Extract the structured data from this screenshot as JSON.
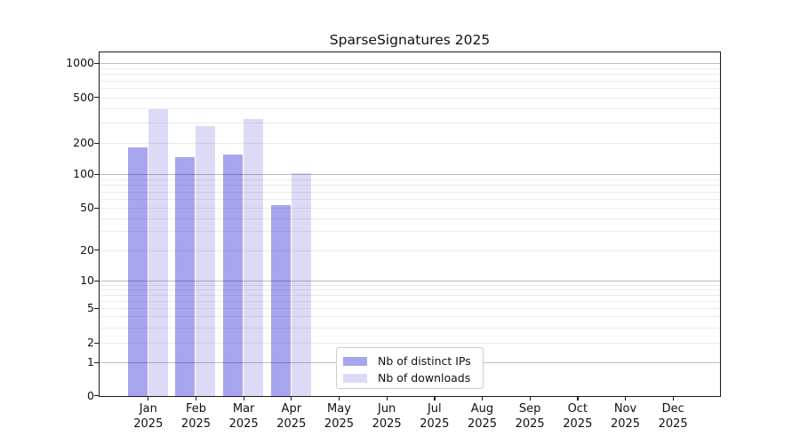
{
  "title": "SparseSignatures 2025",
  "colors": {
    "ips_fill": "rgba(0,0,205,0.35)",
    "downloads_fill": "rgba(0,0,205,0.14)",
    "grid_major": "#bdbdbd",
    "grid_minor": "#ececec",
    "spine": "#1a1a1a",
    "legend_border": "#cccccc",
    "legend_bg": "#ffffff",
    "text": "#111111"
  },
  "legend": {
    "items": [
      {
        "label": "Nb of distinct IPs",
        "series": "ips"
      },
      {
        "label": "Nb of downloads",
        "series": "downloads"
      }
    ]
  },
  "y_axis": {
    "ticks": [
      {
        "label": "1000",
        "value": 1000
      },
      {
        "label": "500",
        "value": 500
      },
      {
        "label": "200",
        "value": 200
      },
      {
        "label": "100",
        "value": 100
      },
      {
        "label": "50",
        "value": 50
      },
      {
        "label": "20",
        "value": 20
      },
      {
        "label": "10",
        "value": 10
      },
      {
        "label": "5",
        "value": 5
      },
      {
        "label": "2",
        "value": 2
      },
      {
        "label": "1",
        "value": 1
      },
      {
        "label": "0",
        "value": 0
      }
    ],
    "major_gridline_values": [
      1,
      10,
      100,
      1000
    ],
    "minor_gridline_values": [
      2,
      3,
      4,
      5,
      6,
      7,
      8,
      9,
      20,
      30,
      40,
      50,
      60,
      70,
      80,
      90,
      200,
      300,
      400,
      500,
      600,
      700,
      800,
      900
    ]
  },
  "x_axis": {
    "categories": [
      {
        "month": "Jan",
        "year": "2025"
      },
      {
        "month": "Feb",
        "year": "2025"
      },
      {
        "month": "Mar",
        "year": "2025"
      },
      {
        "month": "Apr",
        "year": "2025"
      },
      {
        "month": "May",
        "year": "2025"
      },
      {
        "month": "Jun",
        "year": "2025"
      },
      {
        "month": "Jul",
        "year": "2025"
      },
      {
        "month": "Aug",
        "year": "2025"
      },
      {
        "month": "Sep",
        "year": "2025"
      },
      {
        "month": "Oct",
        "year": "2025"
      },
      {
        "month": "Nov",
        "year": "2025"
      },
      {
        "month": "Dec",
        "year": "2025"
      }
    ]
  },
  "chart_data": {
    "type": "bar",
    "title": "SparseSignatures 2025",
    "xlabel": "",
    "ylabel": "",
    "categories": [
      "Jan 2025",
      "Feb 2025",
      "Mar 2025",
      "Apr 2025",
      "May 2025",
      "Jun 2025",
      "Jul 2025",
      "Aug 2025",
      "Sep 2025",
      "Oct 2025",
      "Nov 2025",
      "Dec 2025"
    ],
    "series": [
      {
        "name": "Nb of distinct IPs",
        "values": [
          180,
          146,
          156,
          53,
          0,
          0,
          0,
          0,
          0,
          0,
          0,
          0
        ]
      },
      {
        "name": "Nb of downloads",
        "values": [
          390,
          280,
          325,
          101,
          0,
          0,
          0,
          0,
          0,
          0,
          0,
          0
        ]
      }
    ],
    "yscale": "symlog",
    "y_tick_values": [
      0,
      1,
      2,
      5,
      10,
      20,
      50,
      100,
      200,
      500,
      1000
    ],
    "ylim": [
      0,
      1300
    ],
    "grid": "horizontal",
    "legend_position": "inside lower-center"
  }
}
